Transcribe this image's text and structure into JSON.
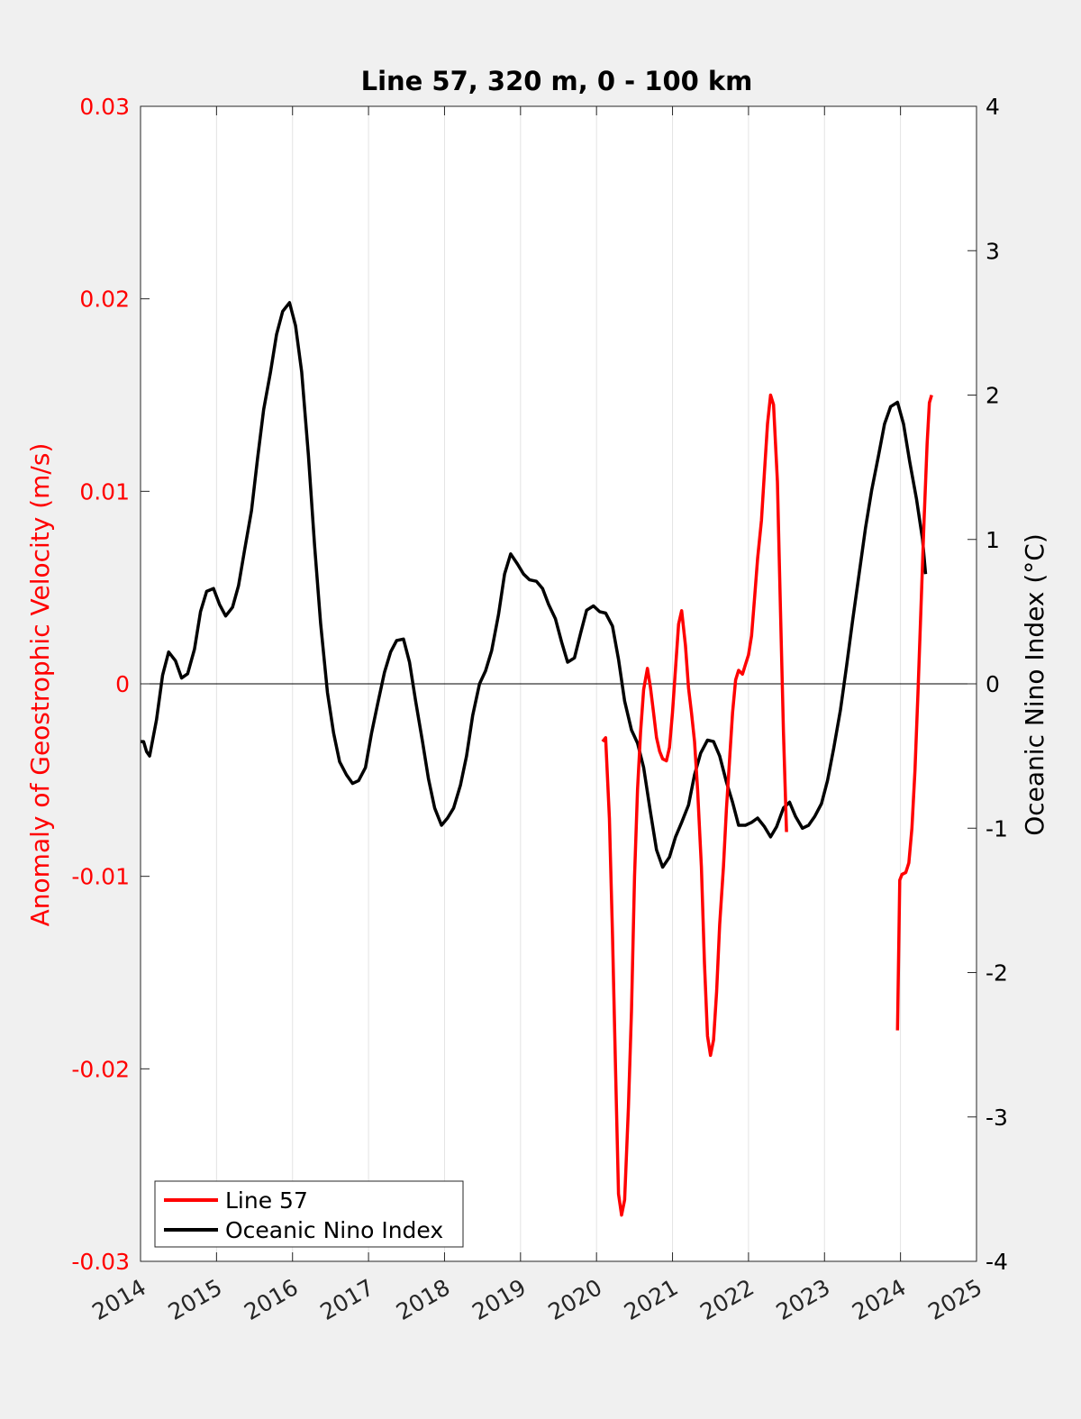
{
  "chart_data": {
    "type": "line",
    "title": "Line 57, 320 m, 0 - 100 km",
    "xlabel": "",
    "ylabel_left": "Anomaly of Geostrophic Velocity (m/s)",
    "ylabel_right": "Oceanic Nino Index (°C)",
    "xlim": [
      2014,
      2025
    ],
    "ylim_left": [
      -0.03,
      0.03
    ],
    "ylim_right": [
      -4,
      4
    ],
    "x_ticks": [
      "2014",
      "2015",
      "2016",
      "2017",
      "2018",
      "2019",
      "2020",
      "2021",
      "2022",
      "2023",
      "2024",
      "2025"
    ],
    "y_left_ticks": [
      "0.03",
      "0.02",
      "0.01",
      "0",
      "-0.01",
      "-0.02",
      "-0.03"
    ],
    "y_right_ticks": [
      "4",
      "3",
      "2",
      "1",
      "0",
      "-1",
      "-2",
      "-3",
      "-4"
    ],
    "grid": "vertical",
    "legend_position": "bottom-left",
    "colors": {
      "line57": "#ff0000",
      "oni": "#000000",
      "left_axis": "#ff0000",
      "right_axis": "#000000"
    },
    "series": [
      {
        "name": "Line 57",
        "axis": "left",
        "segments": [
          [
            [
              2020.08,
              -0.003
            ],
            [
              2020.12,
              -0.0028
            ],
            [
              2020.17,
              -0.007
            ],
            [
              2020.21,
              -0.013
            ],
            [
              2020.25,
              -0.02
            ],
            [
              2020.29,
              -0.0265
            ],
            [
              2020.33,
              -0.0276
            ],
            [
              2020.37,
              -0.0268
            ],
            [
              2020.42,
              -0.022
            ],
            [
              2020.46,
              -0.017
            ],
            [
              2020.5,
              -0.01
            ],
            [
              2020.54,
              -0.0055
            ],
            [
              2020.58,
              -0.0025
            ],
            [
              2020.62,
              -0.0003
            ],
            [
              2020.67,
              0.0008
            ],
            [
              2020.71,
              -0.0002
            ],
            [
              2020.75,
              -0.0015
            ],
            [
              2020.79,
              -0.0028
            ],
            [
              2020.83,
              -0.0035
            ],
            [
              2020.87,
              -0.0039
            ],
            [
              2020.92,
              -0.004
            ],
            [
              2020.96,
              -0.0033
            ],
            [
              2021.0,
              -0.0015
            ],
            [
              2021.04,
              0.0008
            ],
            [
              2021.08,
              0.0031
            ],
            [
              2021.12,
              0.0038
            ],
            [
              2021.17,
              0.002
            ],
            [
              2021.21,
              -0.0002
            ],
            [
              2021.25,
              -0.0015
            ],
            [
              2021.29,
              -0.003
            ],
            [
              2021.33,
              -0.0055
            ],
            [
              2021.38,
              -0.0095
            ],
            [
              2021.42,
              -0.0145
            ],
            [
              2021.46,
              -0.0183
            ],
            [
              2021.5,
              -0.0193
            ],
            [
              2021.54,
              -0.0185
            ],
            [
              2021.58,
              -0.016
            ],
            [
              2021.62,
              -0.0125
            ],
            [
              2021.67,
              -0.0095
            ],
            [
              2021.71,
              -0.0065
            ],
            [
              2021.75,
              -0.004
            ],
            [
              2021.79,
              -0.0015
            ],
            [
              2021.83,
              0.0002
            ],
            [
              2021.87,
              0.0007
            ],
            [
              2021.92,
              0.0005
            ],
            [
              2021.96,
              0.001
            ],
            [
              2022.0,
              0.0015
            ],
            [
              2022.04,
              0.0025
            ],
            [
              2022.08,
              0.0045
            ],
            [
              2022.12,
              0.0065
            ],
            [
              2022.17,
              0.0085
            ],
            [
              2022.21,
              0.011
            ],
            [
              2022.25,
              0.0135
            ],
            [
              2022.29,
              0.015
            ],
            [
              2022.33,
              0.0145
            ],
            [
              2022.38,
              0.0105
            ],
            [
              2022.42,
              0.004
            ],
            [
              2022.46,
              -0.0025
            ],
            [
              2022.5,
              -0.0077
            ]
          ],
          [
            [
              2023.96,
              -0.018
            ],
            [
              2023.99,
              -0.0102
            ],
            [
              2024.02,
              -0.0099
            ],
            [
              2024.07,
              -0.0098
            ],
            [
              2024.11,
              -0.0093
            ],
            [
              2024.15,
              -0.0075
            ],
            [
              2024.19,
              -0.0045
            ],
            [
              2024.23,
              -0.0005
            ],
            [
              2024.27,
              0.004
            ],
            [
              2024.31,
              0.0085
            ],
            [
              2024.35,
              0.0125
            ],
            [
              2024.38,
              0.0146
            ],
            [
              2024.41,
              0.015
            ]
          ]
        ]
      },
      {
        "name": "Oceanic Nino Index",
        "axis": "right",
        "points": [
          [
            2014.0,
            -0.4
          ],
          [
            2014.04,
            -0.4
          ],
          [
            2014.08,
            -0.47
          ],
          [
            2014.12,
            -0.5
          ],
          [
            2014.21,
            -0.25
          ],
          [
            2014.29,
            0.06
          ],
          [
            2014.37,
            0.22
          ],
          [
            2014.46,
            0.16
          ],
          [
            2014.54,
            0.04
          ],
          [
            2014.62,
            0.07
          ],
          [
            2014.71,
            0.24
          ],
          [
            2014.79,
            0.5
          ],
          [
            2014.87,
            0.64
          ],
          [
            2014.96,
            0.66
          ],
          [
            2015.04,
            0.55
          ],
          [
            2015.12,
            0.47
          ],
          [
            2015.21,
            0.53
          ],
          [
            2015.29,
            0.68
          ],
          [
            2015.37,
            0.93
          ],
          [
            2015.46,
            1.2
          ],
          [
            2015.54,
            1.56
          ],
          [
            2015.62,
            1.9
          ],
          [
            2015.71,
            2.16
          ],
          [
            2015.79,
            2.42
          ],
          [
            2015.87,
            2.58
          ],
          [
            2015.96,
            2.64
          ],
          [
            2016.04,
            2.48
          ],
          [
            2016.12,
            2.16
          ],
          [
            2016.21,
            1.58
          ],
          [
            2016.29,
            0.96
          ],
          [
            2016.37,
            0.42
          ],
          [
            2016.46,
            -0.06
          ],
          [
            2016.54,
            -0.34
          ],
          [
            2016.62,
            -0.54
          ],
          [
            2016.71,
            -0.63
          ],
          [
            2016.79,
            -0.69
          ],
          [
            2016.87,
            -0.67
          ],
          [
            2016.96,
            -0.58
          ],
          [
            2017.04,
            -0.34
          ],
          [
            2017.12,
            -0.14
          ],
          [
            2017.21,
            0.08
          ],
          [
            2017.29,
            0.22
          ],
          [
            2017.37,
            0.3
          ],
          [
            2017.46,
            0.31
          ],
          [
            2017.54,
            0.15
          ],
          [
            2017.62,
            -0.12
          ],
          [
            2017.71,
            -0.4
          ],
          [
            2017.79,
            -0.66
          ],
          [
            2017.87,
            -0.86
          ],
          [
            2017.96,
            -0.98
          ],
          [
            2018.04,
            -0.93
          ],
          [
            2018.12,
            -0.86
          ],
          [
            2018.21,
            -0.7
          ],
          [
            2018.29,
            -0.5
          ],
          [
            2018.37,
            -0.22
          ],
          [
            2018.46,
            0.0
          ],
          [
            2018.54,
            0.09
          ],
          [
            2018.62,
            0.23
          ],
          [
            2018.71,
            0.48
          ],
          [
            2018.79,
            0.76
          ],
          [
            2018.87,
            0.9
          ],
          [
            2018.96,
            0.83
          ],
          [
            2019.04,
            0.76
          ],
          [
            2019.12,
            0.72
          ],
          [
            2019.21,
            0.71
          ],
          [
            2019.29,
            0.66
          ],
          [
            2019.37,
            0.55
          ],
          [
            2019.46,
            0.45
          ],
          [
            2019.54,
            0.29
          ],
          [
            2019.62,
            0.15
          ],
          [
            2019.71,
            0.18
          ],
          [
            2019.79,
            0.35
          ],
          [
            2019.87,
            0.51
          ],
          [
            2019.96,
            0.54
          ],
          [
            2020.04,
            0.5
          ],
          [
            2020.12,
            0.49
          ],
          [
            2020.21,
            0.4
          ],
          [
            2020.29,
            0.17
          ],
          [
            2020.37,
            -0.12
          ],
          [
            2020.46,
            -0.32
          ],
          [
            2020.54,
            -0.41
          ],
          [
            2020.62,
            -0.58
          ],
          [
            2020.71,
            -0.89
          ],
          [
            2020.79,
            -1.15
          ],
          [
            2020.87,
            -1.27
          ],
          [
            2020.96,
            -1.2
          ],
          [
            2021.04,
            -1.06
          ],
          [
            2021.12,
            -0.96
          ],
          [
            2021.21,
            -0.84
          ],
          [
            2021.29,
            -0.63
          ],
          [
            2021.37,
            -0.48
          ],
          [
            2021.46,
            -0.39
          ],
          [
            2021.54,
            -0.4
          ],
          [
            2021.62,
            -0.5
          ],
          [
            2021.71,
            -0.68
          ],
          [
            2021.79,
            -0.82
          ],
          [
            2021.87,
            -0.98
          ],
          [
            2021.96,
            -0.98
          ],
          [
            2022.04,
            -0.96
          ],
          [
            2022.12,
            -0.93
          ],
          [
            2022.21,
            -0.99
          ],
          [
            2022.29,
            -1.06
          ],
          [
            2022.37,
            -0.99
          ],
          [
            2022.46,
            -0.86
          ],
          [
            2022.54,
            -0.82
          ],
          [
            2022.62,
            -0.92
          ],
          [
            2022.71,
            -1.0
          ],
          [
            2022.79,
            -0.98
          ],
          [
            2022.87,
            -0.92
          ],
          [
            2022.96,
            -0.83
          ],
          [
            2023.04,
            -0.67
          ],
          [
            2023.12,
            -0.45
          ],
          [
            2023.21,
            -0.18
          ],
          [
            2023.29,
            0.12
          ],
          [
            2023.37,
            0.44
          ],
          [
            2023.46,
            0.78
          ],
          [
            2023.54,
            1.08
          ],
          [
            2023.62,
            1.34
          ],
          [
            2023.71,
            1.58
          ],
          [
            2023.79,
            1.8
          ],
          [
            2023.87,
            1.92
          ],
          [
            2023.96,
            1.95
          ],
          [
            2024.04,
            1.8
          ],
          [
            2024.12,
            1.54
          ],
          [
            2024.21,
            1.28
          ],
          [
            2024.29,
            1.0
          ],
          [
            2024.33,
            0.76
          ]
        ]
      }
    ]
  }
}
